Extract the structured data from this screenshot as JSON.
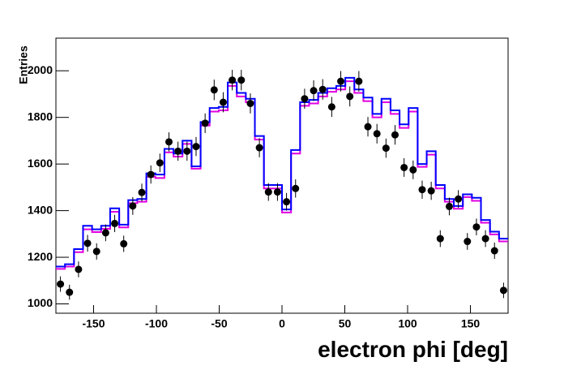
{
  "chart_data": {
    "type": "histogram",
    "y_label": "Entries",
    "x_label": "electron phi [deg]",
    "xlim": [
      -180,
      180
    ],
    "ylim": [
      960,
      2140
    ],
    "xticks": [
      -150,
      -100,
      -50,
      0,
      50,
      100,
      150
    ],
    "yticks": [
      1000,
      1200,
      1400,
      1600,
      1800,
      2000
    ],
    "bins": [
      -180,
      -172.8,
      -165.6,
      -158.4,
      -151.2,
      -144,
      -136.8,
      -129.6,
      -122.4,
      -115.2,
      -108,
      -100.8,
      -93.6,
      -86.4,
      -79.2,
      -72,
      -64.8,
      -57.6,
      -50.4,
      -43.2,
      -36,
      -28.8,
      -21.6,
      -14.4,
      -7.2,
      0,
      7.2,
      14.4,
      21.6,
      28.8,
      36,
      43.2,
      50.4,
      57.6,
      64.8,
      72,
      79.2,
      86.4,
      93.6,
      100.8,
      108,
      115.2,
      122.4,
      129.6,
      136.8,
      144,
      151.2,
      158.4,
      165.6,
      172.8,
      180
    ],
    "series": [
      {
        "color": "#e000e0",
        "values": [
          1150,
          1160,
          1222,
          1320,
          1308,
          1322,
          1395,
          1328,
          1432,
          1438,
          1545,
          1540,
          1650,
          1632,
          1686,
          1580,
          1765,
          1825,
          1830,
          1935,
          1890,
          1865,
          1705,
          1495,
          1495,
          1392,
          1645,
          1850,
          1860,
          1890,
          1910,
          1920,
          1955,
          1905,
          1870,
          1800,
          1865,
          1815,
          1755,
          1825,
          1588,
          1640,
          1495,
          1438,
          1408,
          1458,
          1442,
          1348,
          1298,
          1268
        ]
      },
      {
        "color": "#0000ff",
        "values": [
          1160,
          1170,
          1235,
          1335,
          1320,
          1335,
          1410,
          1340,
          1445,
          1450,
          1560,
          1555,
          1665,
          1645,
          1700,
          1590,
          1780,
          1840,
          1845,
          1950,
          1905,
          1880,
          1720,
          1510,
          1510,
          1405,
          1660,
          1865,
          1875,
          1905,
          1925,
          1935,
          1970,
          1920,
          1885,
          1815,
          1880,
          1830,
          1770,
          1840,
          1600,
          1655,
          1510,
          1450,
          1420,
          1470,
          1455,
          1360,
          1310,
          1280
        ]
      }
    ],
    "points": {
      "color": "#000000",
      "values": [
        1085,
        1050,
        1148,
        1260,
        1225,
        1305,
        1345,
        1258,
        1420,
        1478,
        1555,
        1605,
        1695,
        1655,
        1655,
        1675,
        1775,
        1918,
        1865,
        1960,
        1960,
        1860,
        1670,
        1480,
        1480,
        1438,
        1495,
        1880,
        1915,
        1920,
        1845,
        1955,
        1890,
        1955,
        1760,
        1730,
        1668,
        1725,
        1585,
        1575,
        1490,
        1485,
        1280,
        1418,
        1450,
        1268,
        1330,
        1280,
        1228,
        1058
      ],
      "errors": [
        33,
        32,
        34,
        36,
        35,
        36,
        37,
        35,
        38,
        38,
        39,
        40,
        41,
        41,
        41,
        41,
        42,
        44,
        43,
        44,
        44,
        43,
        41,
        38,
        38,
        38,
        39,
        43,
        44,
        44,
        43,
        44,
        43,
        44,
        42,
        42,
        41,
        42,
        40,
        40,
        39,
        39,
        36,
        38,
        38,
        36,
        36,
        36,
        35,
        33
      ]
    }
  }
}
